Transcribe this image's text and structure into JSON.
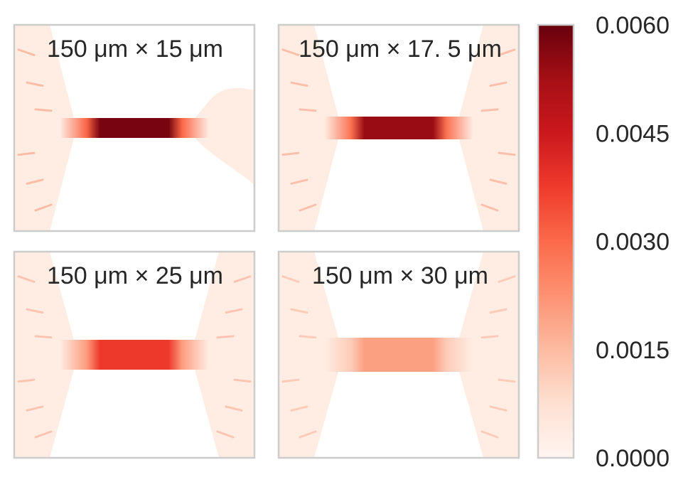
{
  "chart_data": [
    {
      "type": "heatmap",
      "title": "150 μm × 15 μm",
      "field": {
        "neck_value": 0.0058,
        "fan_value": 0.0003,
        "streak_value": 0.0022,
        "right_chamber": "flow-out"
      }
    },
    {
      "type": "heatmap",
      "title": "150 μm × 17. 5 μm",
      "field": {
        "neck_value": 0.0054,
        "fan_value": 0.0003,
        "streak_value": 0.0021,
        "right_chamber": "fan"
      }
    },
    {
      "type": "heatmap",
      "title": "150 μm × 25 μm",
      "field": {
        "neck_value": 0.0038,
        "fan_value": 0.0003,
        "streak_value": 0.0019,
        "right_chamber": "fan"
      }
    },
    {
      "type": "heatmap",
      "title": "150 μm × 30 μm",
      "field": {
        "neck_value": 0.002,
        "fan_value": 0.0003,
        "streak_value": 0.0017,
        "right_chamber": "fan"
      }
    }
  ],
  "colorbar": {
    "colormap": "Reds",
    "range": [
      0,
      0.006
    ],
    "ticks": [
      {
        "value": 0.006,
        "label": "0.0060"
      },
      {
        "value": 0.0045,
        "label": "0.0045"
      },
      {
        "value": 0.003,
        "label": "0.0030"
      },
      {
        "value": 0.0015,
        "label": "0.0015"
      },
      {
        "value": 0.0,
        "label": "0.0000"
      }
    ]
  },
  "colors": {
    "frame": "#cccccc",
    "text": "#262626",
    "reds_stops": [
      "#fff5f0",
      "#fee0d2",
      "#fcbba1",
      "#fc9272",
      "#fb6a4a",
      "#ef3b2c",
      "#cb181d",
      "#a50f15",
      "#67000d"
    ]
  }
}
